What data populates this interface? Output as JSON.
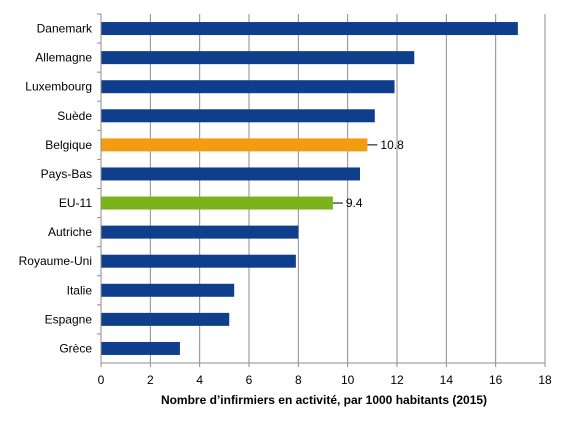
{
  "chart_data": {
    "type": "bar",
    "orientation": "horizontal",
    "categories": [
      "Danemark",
      "Allemagne",
      "Luxembourg",
      "Suède",
      "Belgique",
      "Pays-Bas",
      "EU-11",
      "Autriche",
      "Royaume-Uni",
      "Italie",
      "Espagne",
      "Grèce"
    ],
    "values": [
      16.9,
      12.7,
      11.9,
      11.1,
      10.8,
      10.5,
      9.4,
      8.0,
      7.9,
      5.4,
      5.2,
      3.2
    ],
    "colors": [
      "#0F3F8C",
      "#0F3F8C",
      "#0F3F8C",
      "#0F3F8C",
      "#F39C12",
      "#0F3F8C",
      "#7BB31A",
      "#0F3F8C",
      "#0F3F8C",
      "#0F3F8C",
      "#0F3F8C",
      "#0F3F8C"
    ],
    "data_labels": [
      {
        "category": "Belgique",
        "text": "10.8"
      },
      {
        "category": "EU-11",
        "text": "9.4"
      }
    ],
    "xlabel": "Nombre d’infirmiers en activité, par 1000  habitants (2015)",
    "xlim": [
      0,
      18
    ],
    "xticks": [
      0,
      2,
      4,
      6,
      8,
      10,
      12,
      14,
      16,
      18
    ],
    "grid": "vertical"
  }
}
